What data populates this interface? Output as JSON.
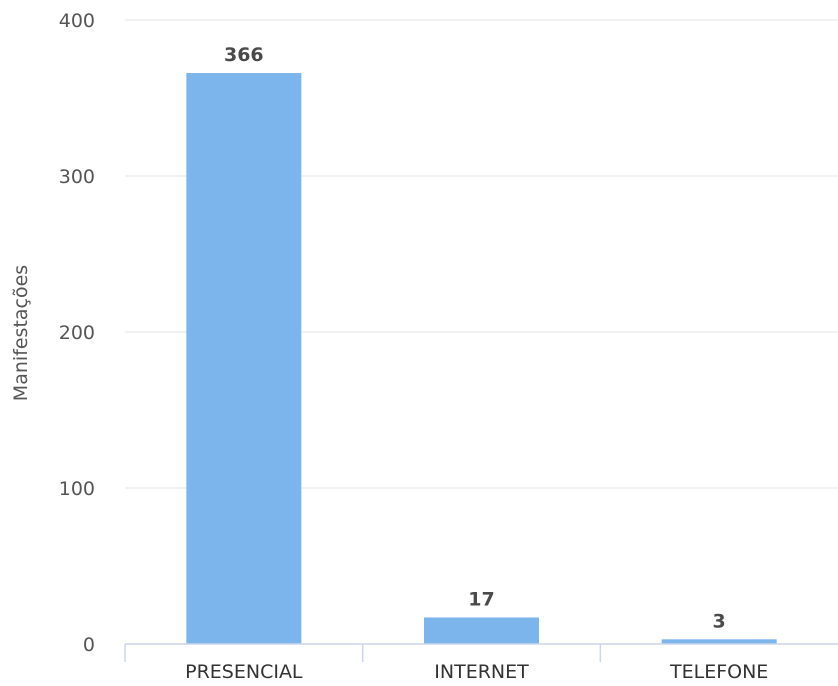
{
  "chart_data": {
    "type": "bar",
    "categories": [
      "PRESENCIAL",
      "INTERNET",
      "TELEFONE"
    ],
    "values": [
      366,
      17,
      3
    ],
    "data_labels": [
      "366",
      "17",
      "3"
    ],
    "ylabel": "Manifestações",
    "xlabel": "",
    "ylim": [
      0,
      400
    ],
    "yticks": [
      0,
      100,
      200,
      300,
      400
    ],
    "ytick_labels": [
      "0",
      "100",
      "200",
      "300",
      "400"
    ],
    "grid": true,
    "bar_color": "#7cb5ec"
  }
}
